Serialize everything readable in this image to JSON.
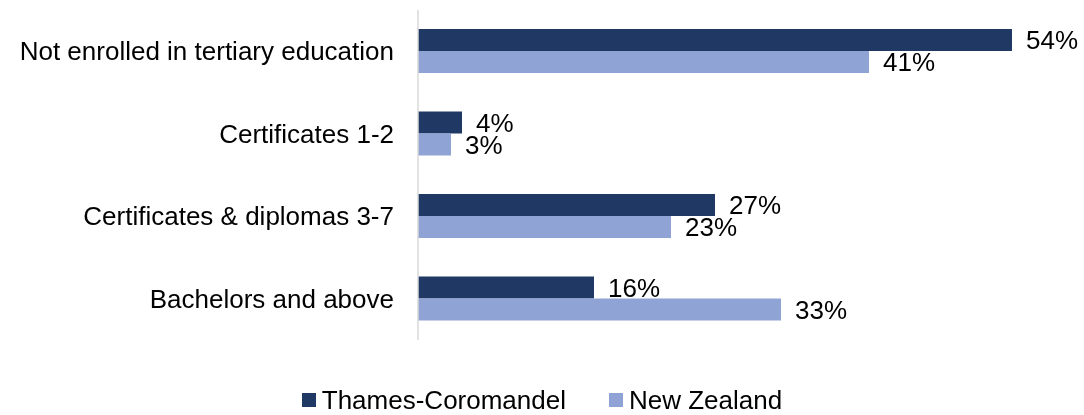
{
  "chart_data": {
    "type": "bar",
    "orientation": "horizontal",
    "categories": [
      "Not enrolled in tertiary education",
      "Certificates 1-2",
      "Certificates & diplomas 3-7",
      "Bachelors and above"
    ],
    "series": [
      {
        "name": "Thames-Coromandel",
        "color": "#203864",
        "values": [
          54,
          4,
          27,
          16
        ],
        "value_labels": [
          "54%",
          "4%",
          "27%",
          "16%"
        ]
      },
      {
        "name": "New Zealand",
        "color": "#8fa3d5",
        "values": [
          41,
          3,
          23,
          33
        ],
        "value_labels": [
          "41%",
          "3%",
          "23%",
          "33%"
        ]
      }
    ],
    "legend": "bottom",
    "tick_labels": "y"
  }
}
